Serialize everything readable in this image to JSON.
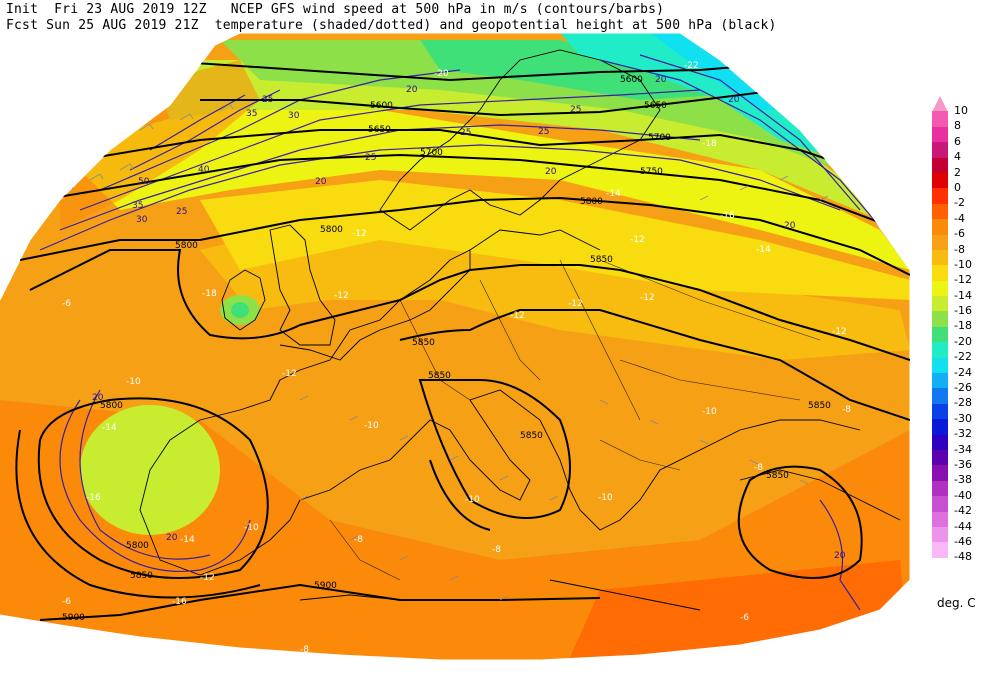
{
  "header": {
    "line1": "Init  Fri 23 AUG 2019 12Z   NCEP GFS wind speed at 500 hPa in m/s (contours/barbs)",
    "line2": "Fcst Sun 25 AUG 2019 21Z  temperature (shaded/dotted) and geopotential height at 500 hPa (black)"
  },
  "legend": {
    "unit": "deg. C",
    "entries": [
      {
        "label": "10",
        "color": "#f59ac4"
      },
      {
        "label": "8",
        "color": "#f25ab0"
      },
      {
        "label": "6",
        "color": "#e8309e"
      },
      {
        "label": "4",
        "color": "#c81878"
      },
      {
        "label": "2",
        "color": "#c40032"
      },
      {
        "label": "0",
        "color": "#e00000"
      },
      {
        "label": "-2",
        "color": "#ff3000"
      },
      {
        "label": "-4",
        "color": "#ff6000"
      },
      {
        "label": "-6",
        "color": "#fb8a0a"
      },
      {
        "label": "-8",
        "color": "#f6a016"
      },
      {
        "label": "-10",
        "color": "#f8bc10"
      },
      {
        "label": "-12",
        "color": "#f8dc10"
      },
      {
        "label": "-14",
        "color": "#eef412"
      },
      {
        "label": "-16",
        "color": "#c8ec30"
      },
      {
        "label": "-18",
        "color": "#8ee048"
      },
      {
        "label": "-20",
        "color": "#40e078"
      },
      {
        "label": "-22",
        "color": "#20ecc8"
      },
      {
        "label": "-24",
        "color": "#10e0f0"
      },
      {
        "label": "-26",
        "color": "#10b0f4"
      },
      {
        "label": "-28",
        "color": "#1078f0"
      },
      {
        "label": "-30",
        "color": "#0a40e8"
      },
      {
        "label": "-32",
        "color": "#0a18d8"
      },
      {
        "label": "-34",
        "color": "#3000c0"
      },
      {
        "label": "-36",
        "color": "#5c00b0"
      },
      {
        "label": "-38",
        "color": "#8810b0"
      },
      {
        "label": "-40",
        "color": "#b030c0"
      },
      {
        "label": "-42",
        "color": "#c850d0"
      },
      {
        "label": "-44",
        "color": "#de70e0"
      },
      {
        "label": "-46",
        "color": "#ec94ec"
      },
      {
        "label": "-48",
        "color": "#f8b8f8"
      }
    ]
  },
  "map_labels": {
    "geopotential": [
      "5600",
      "5650",
      "5700",
      "5750",
      "5800",
      "5850",
      "5900"
    ],
    "wind": [
      "20",
      "25",
      "30",
      "35",
      "40",
      "50"
    ],
    "temperature": [
      "-6",
      "-8",
      "-10",
      "-12",
      "-14",
      "-16",
      "-18",
      "-20",
      "-22"
    ]
  }
}
